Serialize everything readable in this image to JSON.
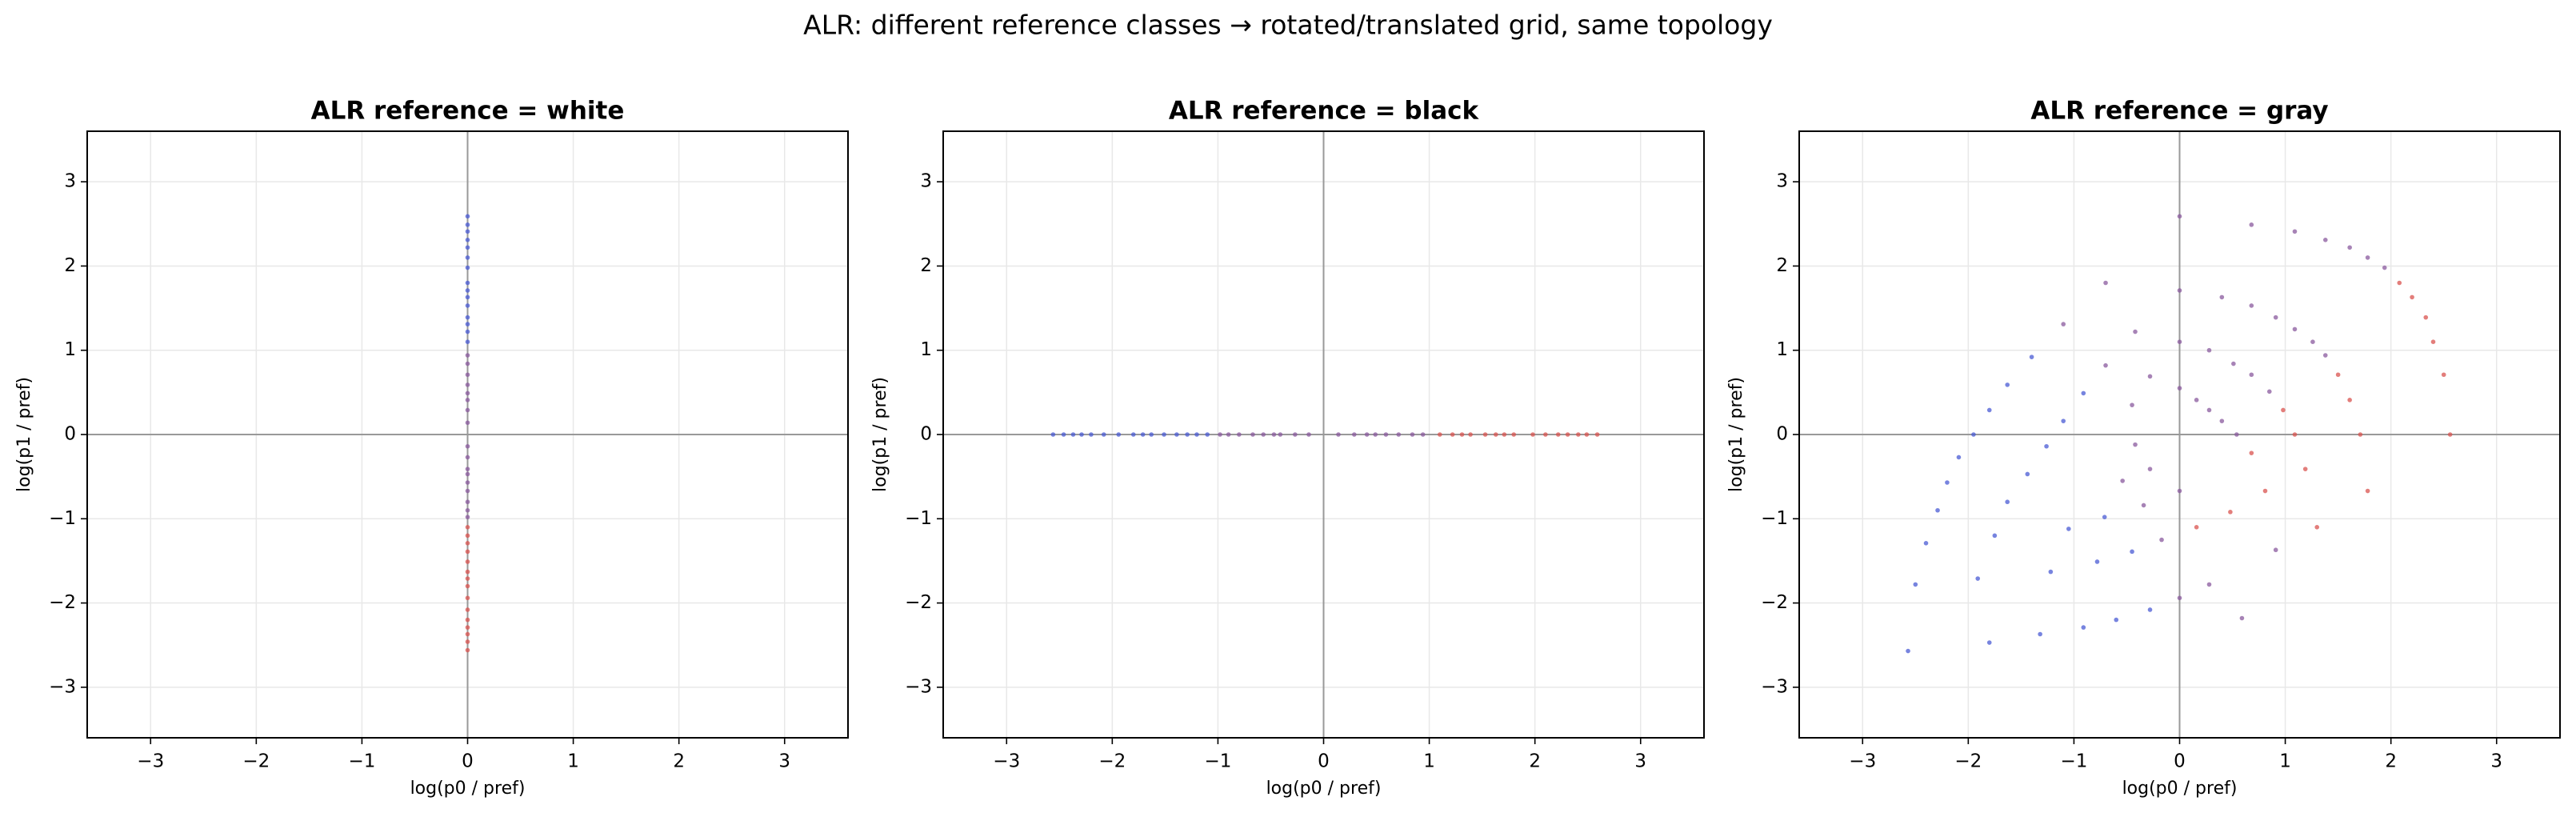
{
  "figure_title": "ALR: different reference classes → rotated/translated grid, same topology",
  "chart_data": [
    {
      "type": "scatter",
      "title": "ALR reference = white",
      "x_label": "log(p0 / pref)",
      "y_label": "log(p1 / pref)",
      "xlim": [
        -3.6,
        3.6
      ],
      "ylim": [
        -3.6,
        3.6
      ],
      "grid": true,
      "zero_lines": [
        0,
        0
      ],
      "xticks": [
        {
          "value": -3,
          "label": "−3"
        },
        {
          "value": -2,
          "label": "−2"
        },
        {
          "value": -1,
          "label": "−1"
        },
        0,
        1,
        2,
        3
      ],
      "yticks": [
        {
          "value": -3,
          "label": "−3"
        },
        {
          "value": -2,
          "label": "−2"
        },
        {
          "value": -1,
          "label": "−1"
        },
        0,
        1,
        2,
        3
      ],
      "x": [
        0,
        0,
        0,
        0,
        0,
        0,
        0,
        0,
        0,
        0,
        0,
        0,
        0,
        0,
        0,
        0,
        0,
        0,
        0,
        0,
        0,
        0,
        0,
        0,
        0,
        0,
        0,
        0,
        0,
        0,
        0,
        0,
        0,
        0,
        0,
        0,
        0,
        0,
        0,
        0,
        0,
        0,
        0,
        0,
        0,
        0,
        0
      ],
      "y": [
        -2.56,
        -2.46,
        -2.37,
        -2.29,
        -2.2,
        -2.08,
        -1.94,
        -1.8,
        -1.71,
        -1.63,
        -1.51,
        -1.39,
        -1.29,
        -1.2,
        -1.1,
        -0.98,
        -0.9,
        -0.8,
        -0.67,
        -0.57,
        -0.47,
        -0.41,
        -0.27,
        -0.14,
        0.14,
        0.29,
        0.41,
        0.49,
        0.59,
        0.71,
        0.84,
        0.94,
        1.1,
        1.22,
        1.31,
        1.39,
        1.53,
        1.63,
        1.71,
        1.8,
        1.98,
        2.1,
        2.22,
        2.31,
        2.41,
        2.49,
        2.59
      ],
      "colors": [
        "#d9534f",
        "#d9534f",
        "#d9534f",
        "#d9534f",
        "#d9534f",
        "#d9534f",
        "#d9534f",
        "#d9534f",
        "#d9534f",
        "#d9534f",
        "#d9534f",
        "#d9534f",
        "#d9534f",
        "#d9534f",
        "#d9534f",
        "#8a5a9e",
        "#8a5a9e",
        "#8a5a9e",
        "#8a5a9e",
        "#8a5a9e",
        "#8a5a9e",
        "#8a5a9e",
        "#8a5a9e",
        "#8a5a9e",
        "#8a5a9e",
        "#8a5a9e",
        "#8a5a9e",
        "#8a5a9e",
        "#8a5a9e",
        "#8a5a9e",
        "#8a5a9e",
        "#8a5a9e",
        "#4a5bd4",
        "#4a5bd4",
        "#4a5bd4",
        "#4a5bd4",
        "#4a5bd4",
        "#4a5bd4",
        "#4a5bd4",
        "#4a5bd4",
        "#4a5bd4",
        "#4a5bd4",
        "#4a5bd4",
        "#4a5bd4",
        "#4a5bd4",
        "#4a5bd4",
        "#4a5bd4"
      ]
    },
    {
      "type": "scatter",
      "title": "ALR reference = black",
      "x_label": "log(p0 / pref)",
      "y_label": "log(p1 / pref)",
      "xlim": [
        -3.6,
        3.6
      ],
      "ylim": [
        -3.6,
        3.6
      ],
      "grid": true,
      "zero_lines": [
        0,
        0
      ],
      "xticks": [
        {
          "value": -3,
          "label": "−3"
        },
        {
          "value": -2,
          "label": "−2"
        },
        {
          "value": -1,
          "label": "−1"
        },
        0,
        1,
        2,
        3
      ],
      "yticks": [
        {
          "value": -3,
          "label": "−3"
        },
        {
          "value": -2,
          "label": "−2"
        },
        {
          "value": -1,
          "label": "−1"
        },
        0,
        1,
        2,
        3
      ],
      "x": [
        -2.56,
        -2.46,
        -2.37,
        -2.29,
        -2.2,
        -2.08,
        -1.94,
        -1.8,
        -1.71,
        -1.63,
        -1.51,
        -1.39,
        -1.29,
        -1.2,
        -1.1,
        -0.98,
        -0.9,
        -0.8,
        -0.67,
        -0.57,
        -0.47,
        -0.41,
        -0.27,
        -0.14,
        0.14,
        0.29,
        0.41,
        0.49,
        0.59,
        0.71,
        0.84,
        0.94,
        1.1,
        1.22,
        1.31,
        1.39,
        1.53,
        1.63,
        1.71,
        1.8,
        1.98,
        2.1,
        2.22,
        2.31,
        2.41,
        2.49,
        2.59
      ],
      "y": [
        0,
        0,
        0,
        0,
        0,
        0,
        0,
        0,
        0,
        0,
        0,
        0,
        0,
        0,
        0,
        0,
        0,
        0,
        0,
        0,
        0,
        0,
        0,
        0,
        0,
        0,
        0,
        0,
        0,
        0,
        0,
        0,
        0,
        0,
        0,
        0,
        0,
        0,
        0,
        0,
        0,
        0,
        0,
        0,
        0,
        0,
        0
      ],
      "colors": [
        "#4a5bd4",
        "#4a5bd4",
        "#4a5bd4",
        "#4a5bd4",
        "#4a5bd4",
        "#4a5bd4",
        "#4a5bd4",
        "#4a5bd4",
        "#4a5bd4",
        "#4a5bd4",
        "#4a5bd4",
        "#4a5bd4",
        "#4a5bd4",
        "#4a5bd4",
        "#4a5bd4",
        "#8a5a9e",
        "#8a5a9e",
        "#8a5a9e",
        "#8a5a9e",
        "#8a5a9e",
        "#8a5a9e",
        "#8a5a9e",
        "#8a5a9e",
        "#8a5a9e",
        "#8a5a9e",
        "#8a5a9e",
        "#8a5a9e",
        "#8a5a9e",
        "#8a5a9e",
        "#8a5a9e",
        "#8a5a9e",
        "#8a5a9e",
        "#d9534f",
        "#d9534f",
        "#d9534f",
        "#d9534f",
        "#d9534f",
        "#d9534f",
        "#d9534f",
        "#d9534f",
        "#d9534f",
        "#d9534f",
        "#d9534f",
        "#d9534f",
        "#d9534f",
        "#d9534f",
        "#d9534f"
      ]
    },
    {
      "type": "scatter",
      "title": "ALR reference = gray",
      "x_label": "log(p0 / pref)",
      "y_label": "log(p1 / pref)",
      "xlim": [
        -3.6,
        3.6
      ],
      "ylim": [
        -3.6,
        3.6
      ],
      "grid": true,
      "zero_lines": [
        0,
        0
      ],
      "xticks": [
        {
          "value": -3,
          "label": "−3"
        },
        {
          "value": -2,
          "label": "−2"
        },
        {
          "value": -1,
          "label": "−1"
        },
        0,
        1,
        2,
        3
      ],
      "yticks": [
        {
          "value": -3,
          "label": "−3"
        },
        {
          "value": -2,
          "label": "−2"
        },
        {
          "value": -1,
          "label": "−1"
        },
        0,
        1,
        2,
        3
      ],
      "x": [
        0,
        0.68,
        1.09,
        1.38,
        1.61,
        1.78,
        1.94,
        2.08,
        2.2,
        2.33,
        2.4,
        2.5,
        2.56,
        0,
        0.4,
        0.68,
        0.91,
        1.09,
        1.26,
        1.38,
        1.5,
        1.61,
        1.71,
        1.78,
        0,
        0.28,
        0.51,
        0.68,
        0.85,
        0.98,
        1.09,
        1.19,
        1.3,
        0,
        0.16,
        0.28,
        0.4,
        0.54,
        0.68,
        0.81,
        0.91,
        0,
        0.16,
        0.28,
        0.48,
        0.59,
        0,
        -0.17,
        -0.28,
        -0.28,
        -0.42,
        -0.54,
        -0.45,
        -0.6,
        -0.34,
        -0.71,
        -0.78,
        -0.91,
        -1.05,
        -1.22,
        -1.32,
        -1.75,
        -1.91,
        -1.8,
        -2.57,
        -2.5,
        -2.4,
        -2.29,
        -2.2,
        -2.09,
        -1.95,
        -1.8,
        -1.63,
        -1.4,
        -1.1,
        -0.7,
        -0.42,
        -0.28,
        -0.45,
        -0.7,
        -0.91,
        -1.1,
        -1.26,
        -1.44,
        -1.63
      ],
      "y": [
        2.59,
        2.49,
        2.41,
        2.31,
        2.22,
        2.1,
        1.98,
        1.8,
        1.63,
        1.39,
        1.1,
        0.71,
        0,
        1.71,
        1.63,
        1.53,
        1.39,
        1.25,
        1.1,
        0.94,
        0.71,
        0.41,
        0,
        -0.67,
        1.1,
        1.0,
        0.84,
        0.71,
        0.51,
        0.29,
        0,
        -0.41,
        -1.1,
        0.55,
        0.41,
        0.29,
        0.16,
        0,
        -0.22,
        -0.67,
        -1.37,
        -0.67,
        -1.1,
        -1.78,
        -0.92,
        -2.18,
        -1.94,
        -1.25,
        -2.08,
        -0.41,
        -0.12,
        -0.55,
        -1.39,
        -2.2,
        -0.84,
        -0.98,
        -1.51,
        -2.29,
        -1.12,
        -1.63,
        -2.37,
        -1.2,
        -1.71,
        -2.47,
        -2.57,
        -1.78,
        -1.29,
        -0.9,
        -0.57,
        -0.27,
        0,
        0.29,
        0.59,
        0.92,
        1.31,
        1.8,
        1.22,
        0.69,
        0.35,
        0.82,
        0.49,
        0.16,
        -0.14,
        -0.47,
        -0.8
      ],
      "colors": [
        "#8a5a9e",
        "#8a5a9e",
        "#8a5a9e",
        "#8a5a9e",
        "#8a5a9e",
        "#8a5a9e",
        "#8a5a9e",
        "#d9534f",
        "#d9534f",
        "#d9534f",
        "#d9534f",
        "#d9534f",
        "#d9534f",
        "#8a5a9e",
        "#8a5a9e",
        "#8a5a9e",
        "#8a5a9e",
        "#8a5a9e",
        "#8a5a9e",
        "#8a5a9e",
        "#d9534f",
        "#d9534f",
        "#d9534f",
        "#d9534f",
        "#8a5a9e",
        "#8a5a9e",
        "#8a5a9e",
        "#8a5a9e",
        "#8a5a9e",
        "#d9534f",
        "#d9534f",
        "#d9534f",
        "#d9534f",
        "#8a5a9e",
        "#8a5a9e",
        "#8a5a9e",
        "#8a5a9e",
        "#8a5a9e",
        "#d9534f",
        "#d9534f",
        "#8a5a9e",
        "#8a5a9e",
        "#d9534f",
        "#8a5a9e",
        "#d9534f",
        "#8a5a9e",
        "#8a5a9e",
        "#8a5a9e",
        "#4a5bd4",
        "#8a5a9e",
        "#8a5a9e",
        "#8a5a9e",
        "#4a5bd4",
        "#4a5bd4",
        "#8a5a9e",
        "#4a5bd4",
        "#4a5bd4",
        "#4a5bd4",
        "#4a5bd4",
        "#4a5bd4",
        "#4a5bd4",
        "#4a5bd4",
        "#4a5bd4",
        "#4a5bd4",
        "#4a5bd4",
        "#4a5bd4",
        "#4a5bd4",
        "#4a5bd4",
        "#4a5bd4",
        "#4a5bd4",
        "#4a5bd4",
        "#4a5bd4",
        "#4a5bd4",
        "#4a5bd4",
        "#8a5a9e",
        "#8a5a9e",
        "#8a5a9e",
        "#8a5a9e",
        "#8a5a9e",
        "#8a5a9e",
        "#4a5bd4",
        "#4a5bd4",
        "#4a5bd4",
        "#4a5bd4",
        "#4a5bd4"
      ]
    }
  ]
}
